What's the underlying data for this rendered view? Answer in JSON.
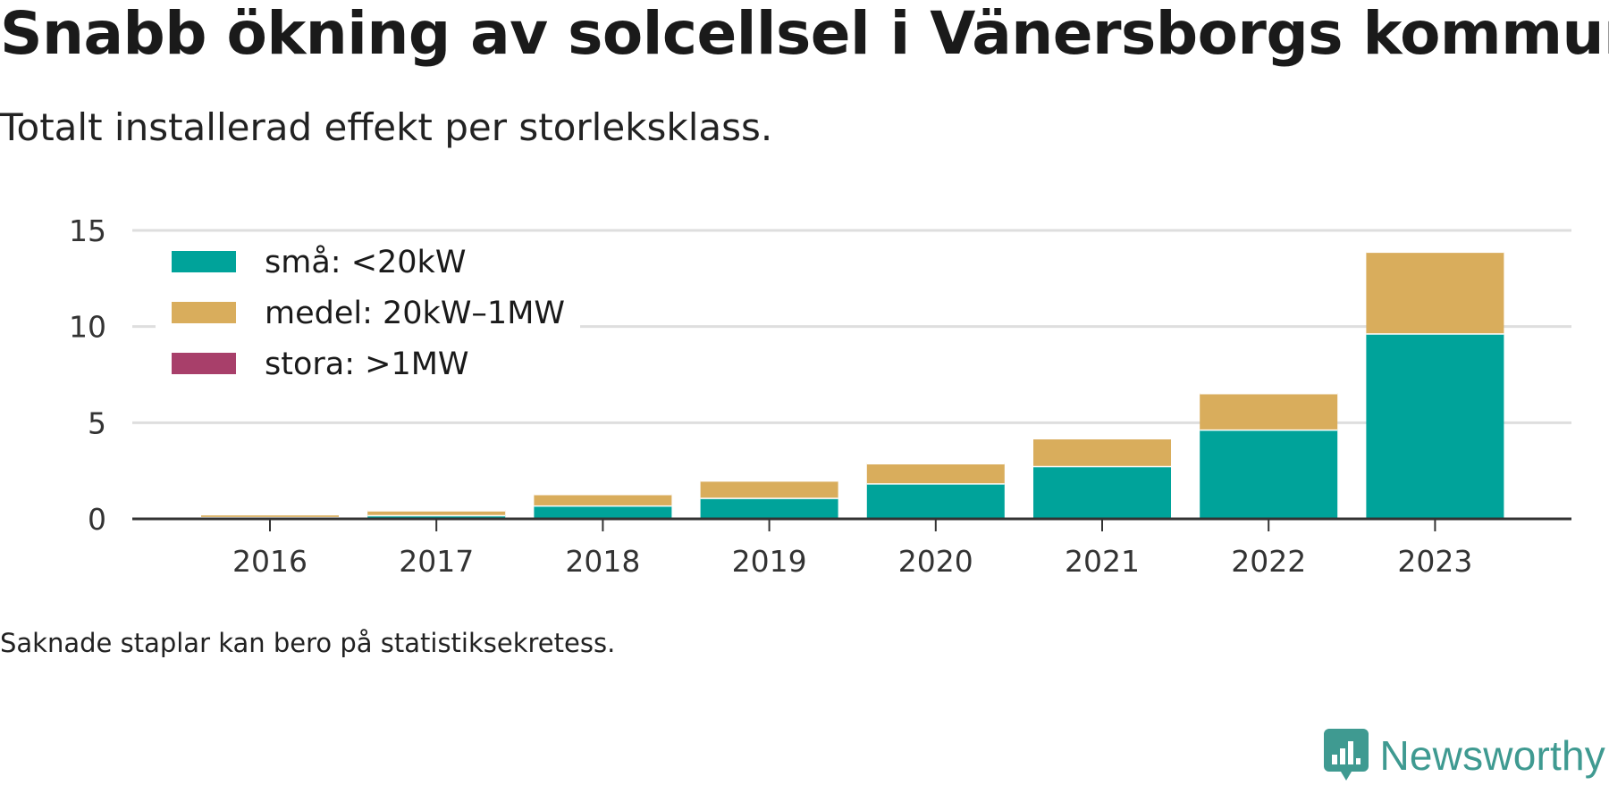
{
  "title": "Snabb ökning av solcellsel i Vänersborgs kommun",
  "subtitle": "Totalt installerad effekt per storleksklass.",
  "note": "Saknade staplar kan bero på statistiksekretess.",
  "brand": {
    "name": "Newsworthy",
    "icon": "newsworthy-logo-icon",
    "color": "#3f9a91"
  },
  "chart_data": {
    "type": "bar",
    "stacked": true,
    "categories": [
      "2016",
      "2017",
      "2018",
      "2019",
      "2020",
      "2021",
      "2022",
      "2023"
    ],
    "series": [
      {
        "name": "små: <20kW",
        "color": "#00a39a",
        "values": [
          0.1,
          0.2,
          0.7,
          1.1,
          1.85,
          2.75,
          4.65,
          9.65
        ]
      },
      {
        "name": "medel: 20kW–1MW",
        "color": "#d9ad5c",
        "values": [
          0.15,
          0.25,
          0.6,
          0.9,
          1.05,
          1.45,
          1.9,
          4.25
        ]
      },
      {
        "name": "stora: >1MW",
        "color": "#a83f6a",
        "values": [
          0,
          0,
          0,
          0,
          0,
          0,
          0,
          0
        ]
      }
    ],
    "ylim": [
      0,
      15
    ],
    "yticks": [
      "0",
      "5",
      "10",
      "15"
    ],
    "xlabel": "",
    "ylabel": "",
    "grid": true,
    "legend": "top-left"
  }
}
